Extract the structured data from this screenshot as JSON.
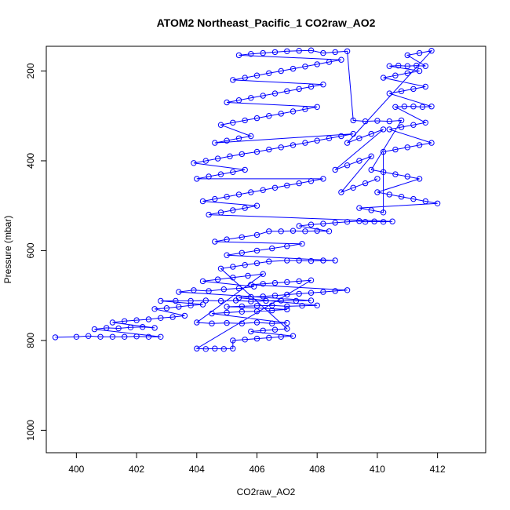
{
  "chart_data": {
    "type": "scatter",
    "title": "ATOM2 Northeast_Pacific_1 CO2raw_AO2",
    "xlabel": "CO2raw_AO2",
    "ylabel": "Pressure (mbar)",
    "xlim": [
      399.0,
      413.6
    ],
    "ylim": [
      1050,
      145
    ],
    "y_reversed": true,
    "x_ticks": [
      400,
      402,
      404,
      406,
      408,
      410,
      412
    ],
    "y_ticks": [
      200,
      400,
      600,
      800,
      1000
    ],
    "grid": false,
    "legend": "none",
    "marker": "open-circle",
    "connect_points": true,
    "series_color": "#0000ff",
    "series": [
      {
        "values": [
          [
            399.3,
            793
          ],
          [
            400.0,
            792
          ],
          [
            400.4,
            790
          ],
          [
            400.8,
            792
          ],
          [
            401.2,
            792
          ],
          [
            401.6,
            792
          ],
          [
            402.0,
            791
          ],
          [
            402.4,
            792
          ],
          [
            402.8,
            792
          ],
          [
            400.6,
            775
          ],
          [
            401.0,
            772
          ],
          [
            401.4,
            773
          ],
          [
            401.8,
            771
          ],
          [
            402.2,
            770
          ],
          [
            402.6,
            772
          ],
          [
            401.2,
            760
          ],
          [
            401.6,
            757
          ],
          [
            402.0,
            755
          ],
          [
            402.4,
            753
          ],
          [
            402.8,
            750
          ],
          [
            403.2,
            748
          ],
          [
            403.6,
            745
          ],
          [
            402.6,
            730
          ],
          [
            403.0,
            728
          ],
          [
            403.4,
            725
          ],
          [
            403.8,
            722
          ],
          [
            404.2,
            720
          ],
          [
            402.8,
            712
          ],
          [
            403.3,
            712
          ],
          [
            403.8,
            712
          ],
          [
            404.3,
            711
          ],
          [
            404.8,
            712
          ],
          [
            405.3,
            711
          ],
          [
            405.8,
            713
          ],
          [
            406.3,
            712
          ],
          [
            406.8,
            711
          ],
          [
            407.3,
            712
          ],
          [
            407.8,
            711
          ],
          [
            403.4,
            692
          ],
          [
            403.9,
            688
          ],
          [
            404.4,
            690
          ],
          [
            404.9,
            686
          ],
          [
            405.4,
            684
          ],
          [
            405.9,
            680
          ],
          [
            404.2,
            668
          ],
          [
            404.7,
            664
          ],
          [
            405.2,
            660
          ],
          [
            405.7,
            656
          ],
          [
            406.2,
            652
          ],
          [
            404.0,
            760
          ],
          [
            404.5,
            762
          ],
          [
            405.0,
            761
          ],
          [
            405.5,
            762
          ],
          [
            406.0,
            760
          ],
          [
            406.5,
            762
          ],
          [
            407.0,
            761
          ],
          [
            404.5,
            740
          ],
          [
            405.0,
            738
          ],
          [
            405.5,
            736
          ],
          [
            406.0,
            735
          ],
          [
            406.5,
            733
          ],
          [
            407.0,
            731
          ],
          [
            405.0,
            725
          ],
          [
            405.5,
            724
          ],
          [
            406.0,
            723
          ],
          [
            406.5,
            722
          ],
          [
            407.0,
            724
          ],
          [
            407.5,
            723
          ],
          [
            408.0,
            722
          ],
          [
            405.4,
            705
          ],
          [
            405.8,
            703
          ],
          [
            406.2,
            702
          ],
          [
            406.6,
            700
          ],
          [
            407.0,
            698
          ],
          [
            407.4,
            696
          ],
          [
            407.8,
            694
          ],
          [
            408.2,
            692
          ],
          [
            408.6,
            690
          ],
          [
            409.0,
            688
          ],
          [
            405.8,
            676
          ],
          [
            406.2,
            674
          ],
          [
            406.6,
            672
          ],
          [
            407.0,
            670
          ],
          [
            407.4,
            668
          ],
          [
            407.8,
            666
          ],
          [
            404.0,
            818
          ],
          [
            404.3,
            819
          ],
          [
            404.6,
            818
          ],
          [
            404.9,
            819
          ],
          [
            405.2,
            818
          ],
          [
            405.2,
            800
          ],
          [
            405.6,
            798
          ],
          [
            406.0,
            796
          ],
          [
            406.4,
            794
          ],
          [
            406.8,
            792
          ],
          [
            407.2,
            790
          ],
          [
            405.8,
            780
          ],
          [
            406.2,
            778
          ],
          [
            406.6,
            776
          ],
          [
            407.0,
            774
          ],
          [
            404.8,
            640
          ],
          [
            405.2,
            636
          ],
          [
            405.6,
            632
          ],
          [
            406.0,
            628
          ],
          [
            406.4,
            624
          ],
          [
            407.0,
            622
          ],
          [
            407.4,
            622
          ],
          [
            407.8,
            623
          ],
          [
            408.2,
            622
          ],
          [
            408.6,
            622
          ],
          [
            405.0,
            610
          ],
          [
            405.5,
            605
          ],
          [
            406.0,
            600
          ],
          [
            406.5,
            595
          ],
          [
            407.0,
            590
          ],
          [
            407.5,
            585
          ],
          [
            404.6,
            580
          ],
          [
            405.0,
            575
          ],
          [
            405.5,
            570
          ],
          [
            406.0,
            565
          ],
          [
            406.4,
            557
          ],
          [
            406.8,
            557
          ],
          [
            407.2,
            556
          ],
          [
            407.6,
            557
          ],
          [
            408.0,
            556
          ],
          [
            408.4,
            557
          ],
          [
            407.4,
            545
          ],
          [
            407.8,
            542
          ],
          [
            408.2,
            540
          ],
          [
            408.6,
            538
          ],
          [
            409.0,
            536
          ],
          [
            409.4,
            534
          ],
          [
            409.6,
            536
          ],
          [
            409.9,
            535
          ],
          [
            410.2,
            536
          ],
          [
            410.5,
            535
          ],
          [
            404.4,
            520
          ],
          [
            404.8,
            515
          ],
          [
            405.2,
            510
          ],
          [
            405.6,
            505
          ],
          [
            406.0,
            500
          ],
          [
            404.2,
            490
          ],
          [
            404.6,
            485
          ],
          [
            405.0,
            480
          ],
          [
            405.4,
            475
          ],
          [
            405.8,
            470
          ],
          [
            406.2,
            465
          ],
          [
            406.6,
            460
          ],
          [
            407.0,
            455
          ],
          [
            407.4,
            450
          ],
          [
            407.8,
            445
          ],
          [
            408.2,
            440
          ],
          [
            404.0,
            440
          ],
          [
            404.4,
            435
          ],
          [
            404.8,
            430
          ],
          [
            405.2,
            425
          ],
          [
            405.6,
            420
          ],
          [
            403.9,
            405
          ],
          [
            404.3,
            400
          ],
          [
            404.7,
            395
          ],
          [
            405.1,
            390
          ],
          [
            405.5,
            385
          ],
          [
            406.0,
            380
          ],
          [
            406.4,
            375
          ],
          [
            406.8,
            370
          ],
          [
            407.2,
            365
          ],
          [
            407.6,
            360
          ],
          [
            408.0,
            355
          ],
          [
            408.4,
            350
          ],
          [
            408.8,
            345
          ],
          [
            409.2,
            340
          ],
          [
            404.6,
            360
          ],
          [
            405.0,
            355
          ],
          [
            405.4,
            350
          ],
          [
            405.8,
            345
          ],
          [
            404.8,
            320
          ],
          [
            405.2,
            315
          ],
          [
            405.6,
            310
          ],
          [
            406.0,
            305
          ],
          [
            406.4,
            300
          ],
          [
            406.8,
            295
          ],
          [
            407.2,
            290
          ],
          [
            407.6,
            285
          ],
          [
            408.0,
            280
          ],
          [
            405.0,
            270
          ],
          [
            405.4,
            265
          ],
          [
            405.8,
            260
          ],
          [
            406.2,
            255
          ],
          [
            406.6,
            250
          ],
          [
            407.0,
            245
          ],
          [
            407.4,
            240
          ],
          [
            407.8,
            235
          ],
          [
            408.2,
            230
          ],
          [
            405.2,
            220
          ],
          [
            405.6,
            215
          ],
          [
            406.0,
            210
          ],
          [
            406.4,
            205
          ],
          [
            406.8,
            200
          ],
          [
            407.2,
            195
          ],
          [
            407.6,
            190
          ],
          [
            408.0,
            185
          ],
          [
            408.4,
            180
          ],
          [
            408.8,
            175
          ],
          [
            405.4,
            165
          ],
          [
            405.8,
            162
          ],
          [
            406.2,
            160
          ],
          [
            406.6,
            158
          ],
          [
            407.0,
            156
          ],
          [
            407.4,
            155
          ],
          [
            407.8,
            154
          ],
          [
            408.2,
            160
          ],
          [
            408.6,
            158
          ],
          [
            409.0,
            156
          ],
          [
            409.2,
            310
          ],
          [
            409.6,
            312
          ],
          [
            410.0,
            311
          ],
          [
            410.4,
            312
          ],
          [
            410.8,
            310
          ],
          [
            409.8,
            420
          ],
          [
            410.2,
            425
          ],
          [
            410.6,
            430
          ],
          [
            411.0,
            435
          ],
          [
            411.4,
            440
          ],
          [
            410.0,
            470
          ],
          [
            410.4,
            475
          ],
          [
            410.8,
            480
          ],
          [
            411.2,
            485
          ],
          [
            411.6,
            490
          ],
          [
            412.0,
            495
          ],
          [
            409.4,
            505
          ],
          [
            409.8,
            510
          ],
          [
            410.2,
            515
          ],
          [
            410.2,
            380
          ],
          [
            410.6,
            375
          ],
          [
            411.0,
            370
          ],
          [
            411.4,
            365
          ],
          [
            411.8,
            360
          ],
          [
            410.4,
            330
          ],
          [
            410.8,
            325
          ],
          [
            411.2,
            320
          ],
          [
            411.6,
            315
          ],
          [
            410.6,
            280
          ],
          [
            410.9,
            279
          ],
          [
            411.2,
            279
          ],
          [
            411.5,
            280
          ],
          [
            411.8,
            279
          ],
          [
            410.4,
            250
          ],
          [
            410.8,
            245
          ],
          [
            411.2,
            240
          ],
          [
            411.6,
            235
          ],
          [
            410.2,
            215
          ],
          [
            410.6,
            210
          ],
          [
            411.0,
            205
          ],
          [
            411.4,
            200
          ],
          [
            410.4,
            189
          ],
          [
            410.7,
            188
          ],
          [
            411.0,
            189
          ],
          [
            411.3,
            188
          ],
          [
            411.6,
            189
          ],
          [
            411.0,
            165
          ],
          [
            411.4,
            160
          ],
          [
            411.8,
            155
          ],
          [
            409.0,
            360
          ],
          [
            409.4,
            350
          ],
          [
            409.8,
            340
          ],
          [
            410.2,
            330
          ],
          [
            408.6,
            420
          ],
          [
            409.0,
            410
          ],
          [
            409.4,
            400
          ],
          [
            409.8,
            390
          ],
          [
            408.8,
            470
          ],
          [
            409.2,
            460
          ],
          [
            409.6,
            450
          ],
          [
            410.0,
            440
          ]
        ]
      }
    ]
  }
}
